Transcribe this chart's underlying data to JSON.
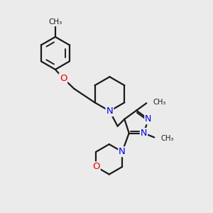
{
  "background_color": "#ebebeb",
  "bond_color": "#1a1a1a",
  "N_color": "#0000ee",
  "O_color": "#ee0000",
  "line_width": 1.6,
  "font_size_atom": 8.5,
  "fig_size": [
    3.0,
    3.0
  ],
  "dpi": 100,
  "xlim": [
    0,
    10
  ],
  "ylim": [
    0,
    10
  ]
}
